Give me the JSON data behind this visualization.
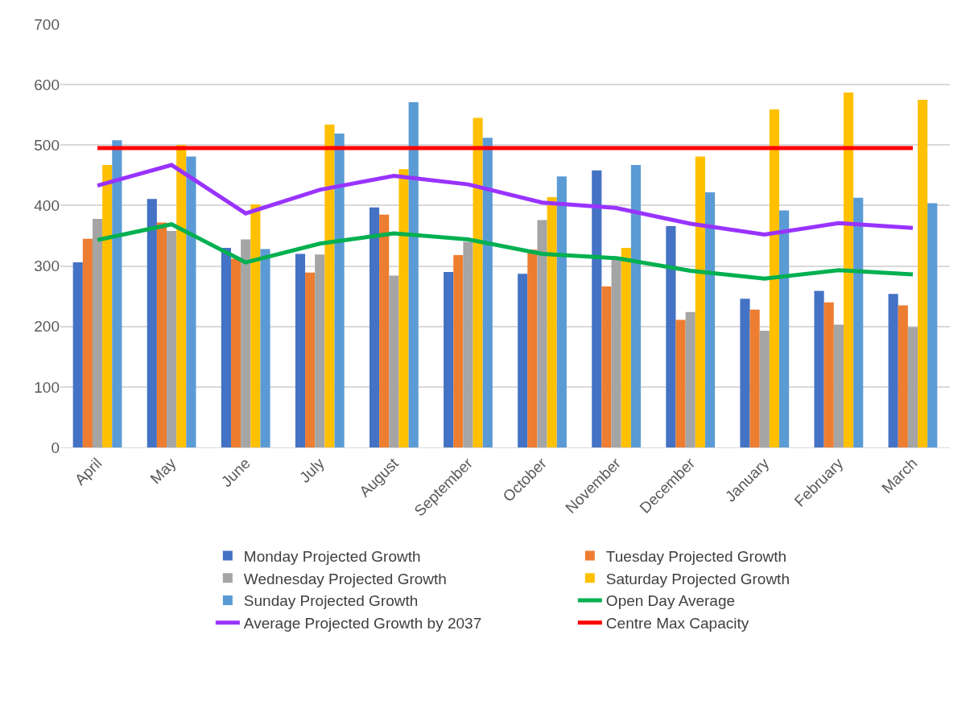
{
  "chart_data": {
    "type": "bar",
    "categories": [
      "April",
      "May",
      "June",
      "July",
      "August",
      "September",
      "October",
      "November",
      "December",
      "January",
      "February",
      "March"
    ],
    "series": [
      {
        "name": "Monday Projected Growth",
        "color": "#4472c4",
        "values": [
          306,
          411,
          330,
          320,
          397,
          290,
          287,
          458,
          366,
          246,
          259,
          254
        ]
      },
      {
        "name": "Tuesday Projected Growth",
        "color": "#ed7d31",
        "values": [
          345,
          372,
          312,
          289,
          385,
          318,
          327,
          266,
          211,
          228,
          240,
          235
        ]
      },
      {
        "name": "Wednesday Projected Growth",
        "color": "#a5a5a5",
        "values": [
          378,
          358,
          344,
          319,
          284,
          340,
          376,
          310,
          224,
          193,
          203,
          199
        ]
      },
      {
        "name": "Saturday Projected Growth",
        "color": "#ffc000",
        "values": [
          467,
          500,
          402,
          534,
          460,
          545,
          414,
          330,
          481,
          559,
          587,
          575
        ]
      },
      {
        "name": "Sunday Projected Growth",
        "color": "#5b9bd5",
        "values": [
          508,
          481,
          328,
          519,
          571,
          512,
          448,
          467,
          422,
          392,
          413,
          404
        ]
      },
      {
        "name": "Open Day Average",
        "type": "line",
        "color": "#00b050",
        "values": [
          343,
          369,
          306,
          337,
          354,
          344,
          320,
          313,
          292,
          279,
          293,
          286
        ]
      },
      {
        "name": "Average Projected Growth by 2037",
        "type": "line",
        "color": "#9933ff",
        "values": [
          433,
          467,
          387,
          426,
          449,
          435,
          405,
          396,
          370,
          352,
          371,
          363
        ]
      },
      {
        "name": "Centre Max Capacity",
        "type": "line",
        "color": "#ff0000",
        "values": [
          495,
          495,
          495,
          495,
          495,
          495,
          495,
          495,
          495,
          495,
          495,
          495
        ]
      }
    ],
    "ylim": [
      0,
      700
    ],
    "yticks": [
      0,
      100,
      200,
      300,
      400,
      500,
      600,
      700
    ],
    "grid": "y",
    "legend": "bottom"
  }
}
